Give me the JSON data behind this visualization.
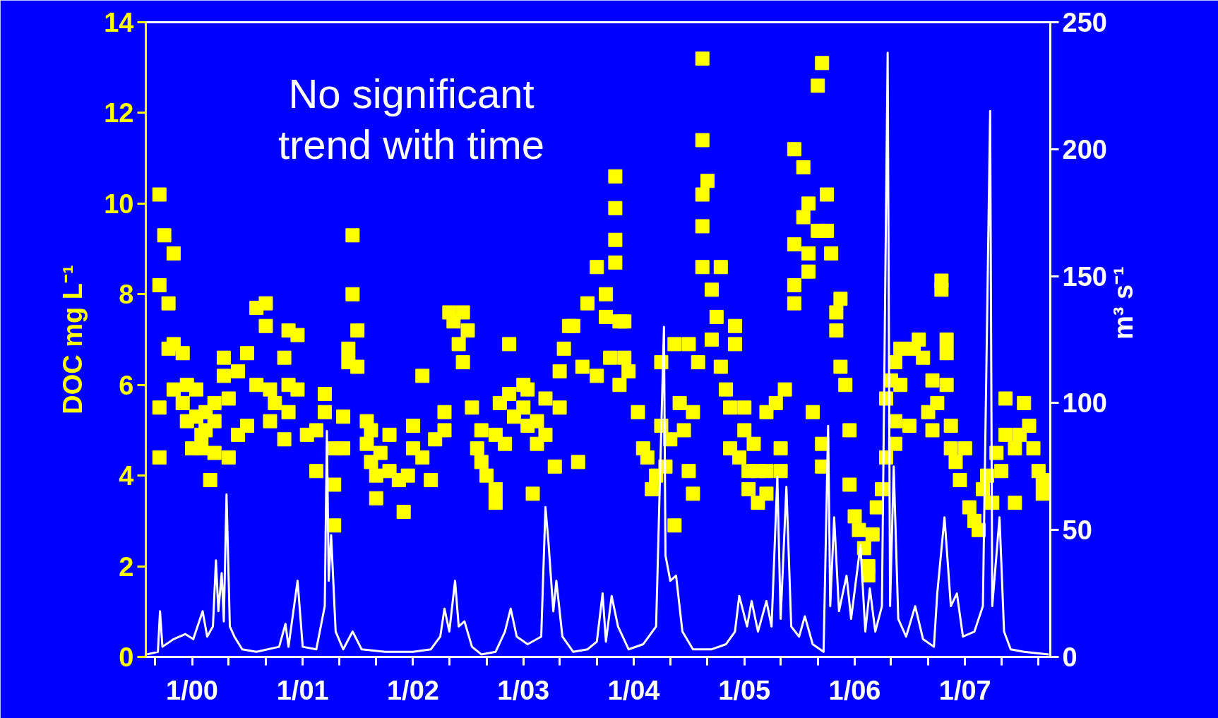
{
  "chart_data": {
    "type": "scatter",
    "ylabel": "DOC mg L⁻¹",
    "y2label": "m³ s⁻¹",
    "annotations": [
      "No significant\ntrend with time"
    ],
    "xlim": [
      "1999-08-01",
      "2007-10-10"
    ],
    "xticks": [
      {
        "value": "1999-09-01",
        "label": null
      },
      {
        "value": "2000-01-01",
        "label": "1/00"
      },
      {
        "value": "2000-05-01",
        "label": null
      },
      {
        "value": "2000-09-01",
        "label": null
      },
      {
        "value": "2001-01-01",
        "label": "1/01"
      },
      {
        "value": "2001-05-01",
        "label": null
      },
      {
        "value": "2001-09-01",
        "label": null
      },
      {
        "value": "2002-01-01",
        "label": "1/02"
      },
      {
        "value": "2002-05-01",
        "label": null
      },
      {
        "value": "2002-09-01",
        "label": null
      },
      {
        "value": "2003-01-01",
        "label": "1/03"
      },
      {
        "value": "2003-05-01",
        "label": null
      },
      {
        "value": "2003-09-01",
        "label": null
      },
      {
        "value": "2004-01-01",
        "label": "1/04"
      },
      {
        "value": "2004-05-01",
        "label": null
      },
      {
        "value": "2004-09-01",
        "label": null
      },
      {
        "value": "2005-01-01",
        "label": "1/05"
      },
      {
        "value": "2005-05-01",
        "label": null
      },
      {
        "value": "2005-09-01",
        "label": null
      },
      {
        "value": "2006-01-01",
        "label": "1/06"
      },
      {
        "value": "2006-05-01",
        "label": null
      },
      {
        "value": "2006-09-01",
        "label": null
      },
      {
        "value": "2007-01-01",
        "label": "1/07"
      },
      {
        "value": "2007-05-01",
        "label": null
      },
      {
        "value": "2007-09-01",
        "label": null
      }
    ],
    "ylim": [
      0,
      14
    ],
    "yticks": [
      0,
      2,
      4,
      6,
      8,
      10,
      12,
      14
    ],
    "y2lim": [
      0,
      250
    ],
    "y2ticks": [
      0,
      50,
      100,
      150,
      200,
      250
    ],
    "grid": false,
    "series": [
      {
        "type": "scatter",
        "marker": "square",
        "color": "#ffff00",
        "x": [
          "1999-09-15",
          "1999-09-15",
          "1999-09-15",
          "1999-09-15",
          "1999-10-01",
          "1999-10-15",
          "1999-10-15",
          "1999-11-01",
          "1999-11-01",
          "1999-11-01",
          "1999-12-01",
          "1999-12-01",
          "1999-12-15",
          "1999-12-15",
          "2000-01-01",
          "2000-01-15",
          "2000-01-15",
          "2000-02-01",
          "2000-02-01",
          "2000-02-15",
          "2000-02-15",
          "2000-03-01",
          "2000-03-15",
          "2000-03-15",
          "2000-03-15",
          "2000-04-15",
          "2000-04-15",
          "2000-05-01",
          "2000-05-01",
          "2000-06-01",
          "2000-06-01",
          "2000-07-01",
          "2000-07-01",
          "2000-08-01",
          "2000-08-01",
          "2000-09-01",
          "2000-09-01",
          "2000-09-15",
          "2000-09-15",
          "2000-10-01",
          "2000-11-01",
          "2000-11-01",
          "2000-11-15",
          "2000-11-15",
          "2000-11-15",
          "2000-12-15",
          "2000-12-15",
          "2001-01-15",
          "2001-02-15",
          "2001-02-15",
          "2001-03-15",
          "2001-03-15",
          "2001-04-15",
          "2001-04-15",
          "2001-04-15",
          "2001-05-15",
          "2001-05-15",
          "2001-06-01",
          "2001-06-01",
          "2001-06-15",
          "2001-06-15",
          "2001-07-01",
          "2001-07-01",
          "2001-08-01",
          "2001-08-01",
          "2001-08-15",
          "2001-08-15",
          "2001-09-01",
          "2001-09-01",
          "2001-09-15",
          "2001-10-15",
          "2001-10-15",
          "2001-11-15",
          "2001-12-01",
          "2001-12-15",
          "2002-01-01",
          "2002-01-01",
          "2002-02-01",
          "2002-02-01",
          "2002-03-01",
          "2002-03-15",
          "2002-04-15",
          "2002-04-15",
          "2002-05-01",
          "2002-05-15",
          "2002-06-01",
          "2002-06-15",
          "2002-06-15",
          "2002-07-01",
          "2002-07-15",
          "2002-08-01",
          "2002-08-15",
          "2002-08-15",
          "2002-09-01",
          "2002-10-01",
          "2002-10-01",
          "2002-10-01",
          "2002-10-15",
          "2002-11-01",
          "2002-11-15",
          "2002-11-15",
          "2002-12-01",
          "2003-01-01",
          "2003-01-01",
          "2003-01-15",
          "2003-01-15",
          "2003-02-01",
          "2003-02-15",
          "2003-02-15",
          "2003-03-15",
          "2003-03-15",
          "2003-04-15",
          "2003-05-01",
          "2003-05-01",
          "2003-05-15",
          "2003-06-01",
          "2003-06-15",
          "2003-07-01",
          "2003-07-15",
          "2003-08-01",
          "2003-09-01",
          "2003-09-01",
          "2003-10-01",
          "2003-10-01",
          "2003-10-15",
          "2003-11-01",
          "2003-11-01",
          "2003-11-01",
          "2003-11-01",
          "2003-11-15",
          "2003-11-15",
          "2003-12-01",
          "2003-12-01",
          "2003-12-15",
          "2004-01-15",
          "2004-02-01",
          "2004-02-15",
          "2004-03-01",
          "2004-03-15",
          "2004-04-01",
          "2004-04-01",
          "2004-04-15",
          "2004-05-01",
          "2004-05-15",
          "2004-05-15",
          "2004-06-01",
          "2004-06-15",
          "2004-07-01",
          "2004-07-01",
          "2004-07-15",
          "2004-07-15",
          "2004-08-01",
          "2004-08-15",
          "2004-08-15",
          "2004-08-15",
          "2004-08-15",
          "2004-08-15",
          "2004-09-01",
          "2004-09-15",
          "2004-09-15",
          "2004-10-01",
          "2004-10-15",
          "2004-10-15",
          "2004-11-01",
          "2004-11-15",
          "2004-11-15",
          "2004-12-01",
          "2004-12-01",
          "2004-12-15",
          "2005-01-01",
          "2005-01-01",
          "2005-01-15",
          "2005-01-15",
          "2005-02-01",
          "2005-02-15",
          "2005-02-15",
          "2005-03-15",
          "2005-03-15",
          "2005-03-15",
          "2005-04-15",
          "2005-05-01",
          "2005-05-01",
          "2005-05-15",
          "2005-06-15",
          "2005-06-15",
          "2005-06-15",
          "2005-06-15",
          "2005-07-15",
          "2005-07-15",
          "2005-08-01",
          "2005-08-01",
          "2005-08-01",
          "2005-08-15",
          "2005-09-01",
          "2005-09-01",
          "2005-09-15",
          "2005-09-15",
          "2005-09-15",
          "2005-10-01",
          "2005-10-01",
          "2005-10-15",
          "2005-11-01",
          "2005-11-01",
          "2005-11-15",
          "2005-11-15",
          "2005-12-01",
          "2005-12-15",
          "2005-12-15",
          "2006-01-01",
          "2006-01-15",
          "2006-02-01",
          "2006-02-15",
          "2006-02-15",
          "2006-03-01",
          "2006-03-15",
          "2006-04-01",
          "2006-04-15",
          "2006-04-15",
          "2006-05-01",
          "2006-05-15",
          "2006-05-15",
          "2006-05-15",
          "2006-06-01",
          "2006-06-01",
          "2006-07-01",
          "2006-07-15",
          "2006-08-01",
          "2006-08-15",
          "2006-09-01",
          "2006-09-15",
          "2006-09-15",
          "2006-10-01",
          "2006-10-15",
          "2006-10-15",
          "2006-11-01",
          "2006-11-01",
          "2006-11-01",
          "2006-11-15",
          "2006-11-15",
          "2006-12-01",
          "2006-12-15",
          "2007-01-01",
          "2007-01-15",
          "2007-02-01",
          "2007-02-15",
          "2007-03-01",
          "2007-03-15",
          "2007-04-01",
          "2007-04-15",
          "2007-05-01",
          "2007-05-15",
          "2007-05-15",
          "2007-06-15",
          "2007-06-15",
          "2007-07-01",
          "2007-07-15",
          "2007-08-01",
          "2007-08-15",
          "2007-09-01",
          "2007-09-15",
          "2007-09-15"
        ],
        "values": [
          5.5,
          4.4,
          8.2,
          10.2,
          9.3,
          7.8,
          6.8,
          8.9,
          6.9,
          5.9,
          6.7,
          5.6,
          5.2,
          6.0,
          4.6,
          5.9,
          5.3,
          4.6,
          4.9,
          5.0,
          5.4,
          3.9,
          5.6,
          5.2,
          4.5,
          6.6,
          6.2,
          4.4,
          5.7,
          6.3,
          4.9,
          6.7,
          5.1,
          7.7,
          6.0,
          7.8,
          7.3,
          5.9,
          5.2,
          5.6,
          6.6,
          4.8,
          7.2,
          5.4,
          6.0,
          7.1,
          5.9,
          4.9,
          5.0,
          4.1,
          5.8,
          5.4,
          2.9,
          3.8,
          4.6,
          5.3,
          4.6,
          6.5,
          6.8,
          8.0,
          9.3,
          7.2,
          6.4,
          5.2,
          4.7,
          4.3,
          5.0,
          3.5,
          4.0,
          4.5,
          4.9,
          4.1,
          3.9,
          3.2,
          4.0,
          5.1,
          4.6,
          6.2,
          4.4,
          3.9,
          4.8,
          5.4,
          5.0,
          7.6,
          7.4,
          6.9,
          7.6,
          6.5,
          7.2,
          5.5,
          4.6,
          5.0,
          4.3,
          4.0,
          3.4,
          3.7,
          4.9,
          5.6,
          4.7,
          6.9,
          5.8,
          5.3,
          6.0,
          5.5,
          5.1,
          5.9,
          3.6,
          4.7,
          5.2,
          5.7,
          4.9,
          4.2,
          6.3,
          5.5,
          6.8,
          7.3,
          7.3,
          4.3,
          6.4,
          7.8,
          8.6,
          6.2,
          7.5,
          8.0,
          6.6,
          10.6,
          9.9,
          9.2,
          8.7,
          6.0,
          7.4,
          6.6,
          7.4,
          6.3,
          5.4,
          4.6,
          4.4,
          3.7,
          4.0,
          6.5,
          5.1,
          4.2,
          4.8,
          6.9,
          2.9,
          5.6,
          5.0,
          6.9,
          4.1,
          3.6,
          5.4,
          6.5,
          8.6,
          9.5,
          10.2,
          11.4,
          13.2,
          10.5,
          7.0,
          8.1,
          7.5,
          8.6,
          6.4,
          5.9,
          5.5,
          4.6,
          7.3,
          6.9,
          4.4,
          5.5,
          5.0,
          4.1,
          3.7,
          4.7,
          3.4,
          4.1,
          5.4,
          4.1,
          3.6,
          5.6,
          4.6,
          4.1,
          5.9,
          9.1,
          7.8,
          8.2,
          11.2,
          9.7,
          10.8,
          8.5,
          10.0,
          8.9,
          5.4,
          12.6,
          9.4,
          13.1,
          4.2,
          4.7,
          10.2,
          9.4,
          8.9,
          7.6,
          7.2,
          7.9,
          6.4,
          6.0,
          5.0,
          3.8,
          3.1,
          2.8,
          2.4,
          2.0,
          1.8,
          2.7,
          3.3,
          3.7,
          4.4,
          5.7,
          6.1,
          6.5,
          5.2,
          4.7,
          6.8,
          6.0,
          5.1,
          6.8,
          7.0,
          6.6,
          5.4,
          6.1,
          5.0,
          5.6,
          8.3,
          8.1,
          7.0,
          6.7,
          6.0,
          5.1,
          4.6,
          4.3,
          3.9,
          4.6,
          3.3,
          3.0,
          2.8,
          3.7,
          4.0,
          3.4,
          4.5,
          4.1,
          5.7,
          4.9,
          4.6,
          3.4,
          4.9,
          5.6,
          5.1,
          4.6,
          4.1,
          3.9,
          3.6
        ]
      },
      {
        "type": "line",
        "axis": "y2",
        "color": "#ffffff",
        "line_style": "solid",
        "x": [
          "1999-08-05",
          "1999-09-10",
          "1999-09-17",
          "1999-09-25",
          "1999-11-01",
          "1999-12-10",
          "2000-01-05",
          "2000-02-05",
          "2000-02-20",
          "2000-03-10",
          "2000-03-20",
          "2000-03-28",
          "2000-04-08",
          "2000-04-15",
          "2000-04-24",
          "2000-05-05",
          "2000-05-20",
          "2000-06-15",
          "2000-08-01",
          "2000-10-15",
          "2000-11-05",
          "2000-11-15",
          "2000-12-15",
          "2001-01-01",
          "2001-02-15",
          "2001-03-15",
          "2001-03-22",
          "2001-03-28",
          "2001-04-05",
          "2001-04-20",
          "2001-05-15",
          "2001-06-15",
          "2001-07-15",
          "2001-10-01",
          "2002-01-01",
          "2002-03-01",
          "2002-04-01",
          "2002-04-15",
          "2002-05-01",
          "2002-05-20",
          "2002-06-01",
          "2002-06-20",
          "2002-07-15",
          "2002-08-15",
          "2002-10-01",
          "2002-11-01",
          "2002-11-20",
          "2002-12-10",
          "2003-01-15",
          "2003-03-01",
          "2003-03-15",
          "2003-03-25",
          "2003-04-10",
          "2003-04-20",
          "2003-05-10",
          "2003-06-15",
          "2003-08-01",
          "2003-09-01",
          "2003-09-20",
          "2003-10-01",
          "2003-10-20",
          "2003-11-10",
          "2003-12-15",
          "2004-02-01",
          "2004-03-15",
          "2004-04-10",
          "2004-04-15",
          "2004-05-01",
          "2004-05-20",
          "2004-06-10",
          "2004-07-15",
          "2004-09-15",
          "2004-11-01",
          "2004-12-01",
          "2004-12-15",
          "2005-01-10",
          "2005-01-25",
          "2005-02-15",
          "2005-03-15",
          "2005-04-01",
          "2005-04-20",
          "2005-05-01",
          "2005-05-20",
          "2005-06-05",
          "2005-07-01",
          "2005-07-20",
          "2005-08-15",
          "2005-09-20",
          "2005-10-05",
          "2005-10-12",
          "2005-10-25",
          "2005-11-10",
          "2005-12-05",
          "2005-12-20",
          "2006-01-20",
          "2006-02-05",
          "2006-02-20",
          "2006-03-10",
          "2006-04-01",
          "2006-04-20",
          "2006-04-28",
          "2006-05-10",
          "2006-05-25",
          "2006-06-20",
          "2006-07-20",
          "2006-08-15",
          "2006-09-20",
          "2006-10-01",
          "2006-10-25",
          "2006-11-15",
          "2006-12-05",
          "2006-12-25",
          "2007-02-01",
          "2007-03-01",
          "2007-03-25",
          "2007-04-01",
          "2007-04-25",
          "2007-05-10",
          "2007-06-01",
          "2007-07-15",
          "2007-10-05"
        ],
        "values": [
          1,
          2,
          18,
          4,
          7,
          9,
          7,
          18,
          8,
          12,
          38,
          18,
          33,
          14,
          64,
          12,
          8,
          3,
          2,
          4,
          13,
          4,
          30,
          4,
          3,
          20,
          89,
          30,
          48,
          10,
          3,
          10,
          3,
          2,
          2,
          3,
          8,
          19,
          10,
          30,
          12,
          14,
          4,
          1,
          2,
          10,
          19,
          8,
          5,
          8,
          59,
          45,
          18,
          30,
          8,
          2,
          3,
          6,
          25,
          6,
          24,
          12,
          3,
          5,
          12,
          130,
          40,
          30,
          32,
          10,
          3,
          3,
          5,
          10,
          24,
          12,
          22,
          10,
          22,
          12,
          71,
          15,
          67,
          12,
          8,
          16,
          5,
          2,
          91,
          20,
          55,
          18,
          32,
          15,
          44,
          10,
          27,
          10,
          20,
          238,
          20,
          75,
          15,
          8,
          20,
          7,
          4,
          25,
          55,
          20,
          25,
          8,
          10,
          20,
          215,
          20,
          55,
          10,
          3,
          2,
          1
        ]
      }
    ]
  }
}
